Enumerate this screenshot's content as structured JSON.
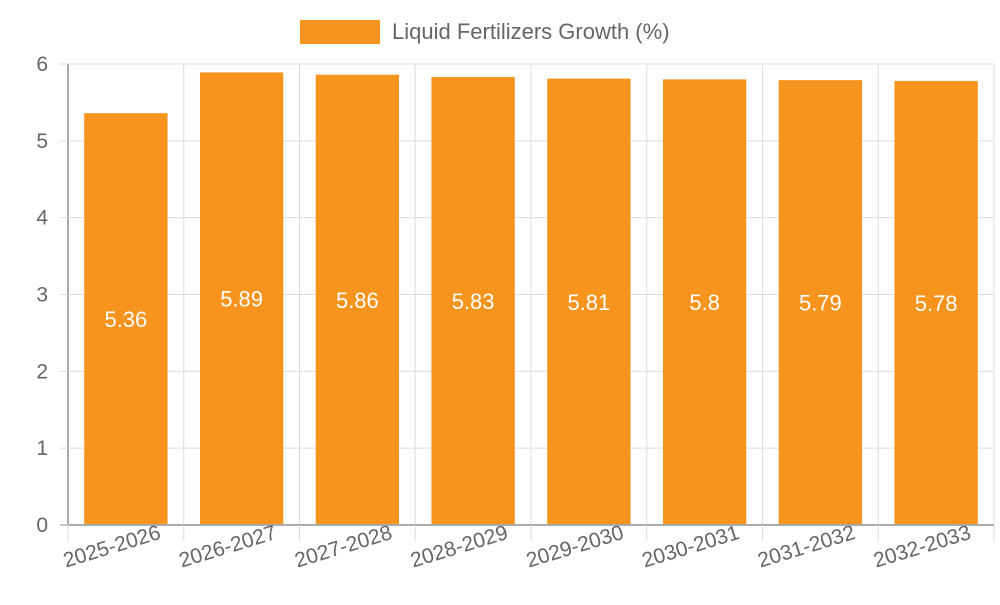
{
  "colors": {
    "bar": "#f7941d",
    "grid": "#dddddd",
    "axis": "#aaaaaa",
    "text": "#666666",
    "bar_label": "#ffffff"
  },
  "chart_data": {
    "type": "bar",
    "categories": [
      "2025-2026",
      "2026-2027",
      "2027-2028",
      "2028-2029",
      "2029-2030",
      "2030-2031",
      "2031-2032",
      "2032-2033"
    ],
    "series": [
      {
        "name": "Liquid Fertilizers Growth (%)",
        "values": [
          5.36,
          5.89,
          5.86,
          5.83,
          5.81,
          5.8,
          5.79,
          5.78
        ]
      }
    ],
    "ylim": [
      0,
      6
    ],
    "yticks": [
      0,
      1,
      2,
      3,
      4,
      5,
      6
    ],
    "grid": true,
    "legend_position": "top-center",
    "data_labels": true,
    "x_tick_rotation": "slanted"
  }
}
